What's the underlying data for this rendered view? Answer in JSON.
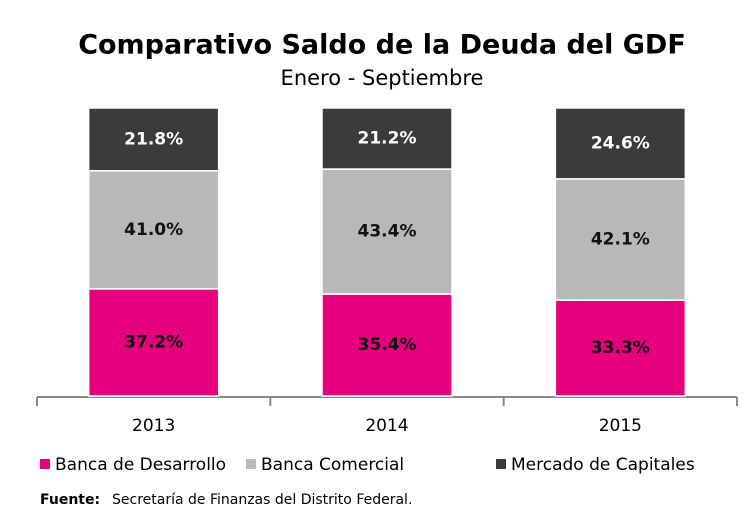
{
  "chart_data": {
    "type": "stacked_bar",
    "title": "Comparativo Saldo de la Deuda del GDF",
    "subtitle": "Enero - Septiembre",
    "categories": [
      "2013",
      "2014",
      "2015"
    ],
    "series": [
      {
        "name": "Banca de Desarrollo",
        "color": "#e6007e",
        "values": [
          37.2,
          35.4,
          33.3
        ],
        "value_labels": [
          "37.2%",
          "35.4%",
          "33.3%"
        ]
      },
      {
        "name": "Banca Comercial",
        "color": "#b8b8b8",
        "values": [
          41.0,
          43.4,
          42.1
        ],
        "value_labels": [
          "41.0%",
          "43.4%",
          "42.1%"
        ]
      },
      {
        "name": "Mercado de Capitales",
        "color": "#3b3b3b",
        "values": [
          21.8,
          21.2,
          24.6
        ],
        "value_labels": [
          "21.8%",
          "21.2%",
          "24.6%"
        ]
      }
    ],
    "ylim": [
      0,
      100
    ],
    "source_label": "Fuente:",
    "source": "Secretaría de Finanzas del Distrito Federal."
  }
}
